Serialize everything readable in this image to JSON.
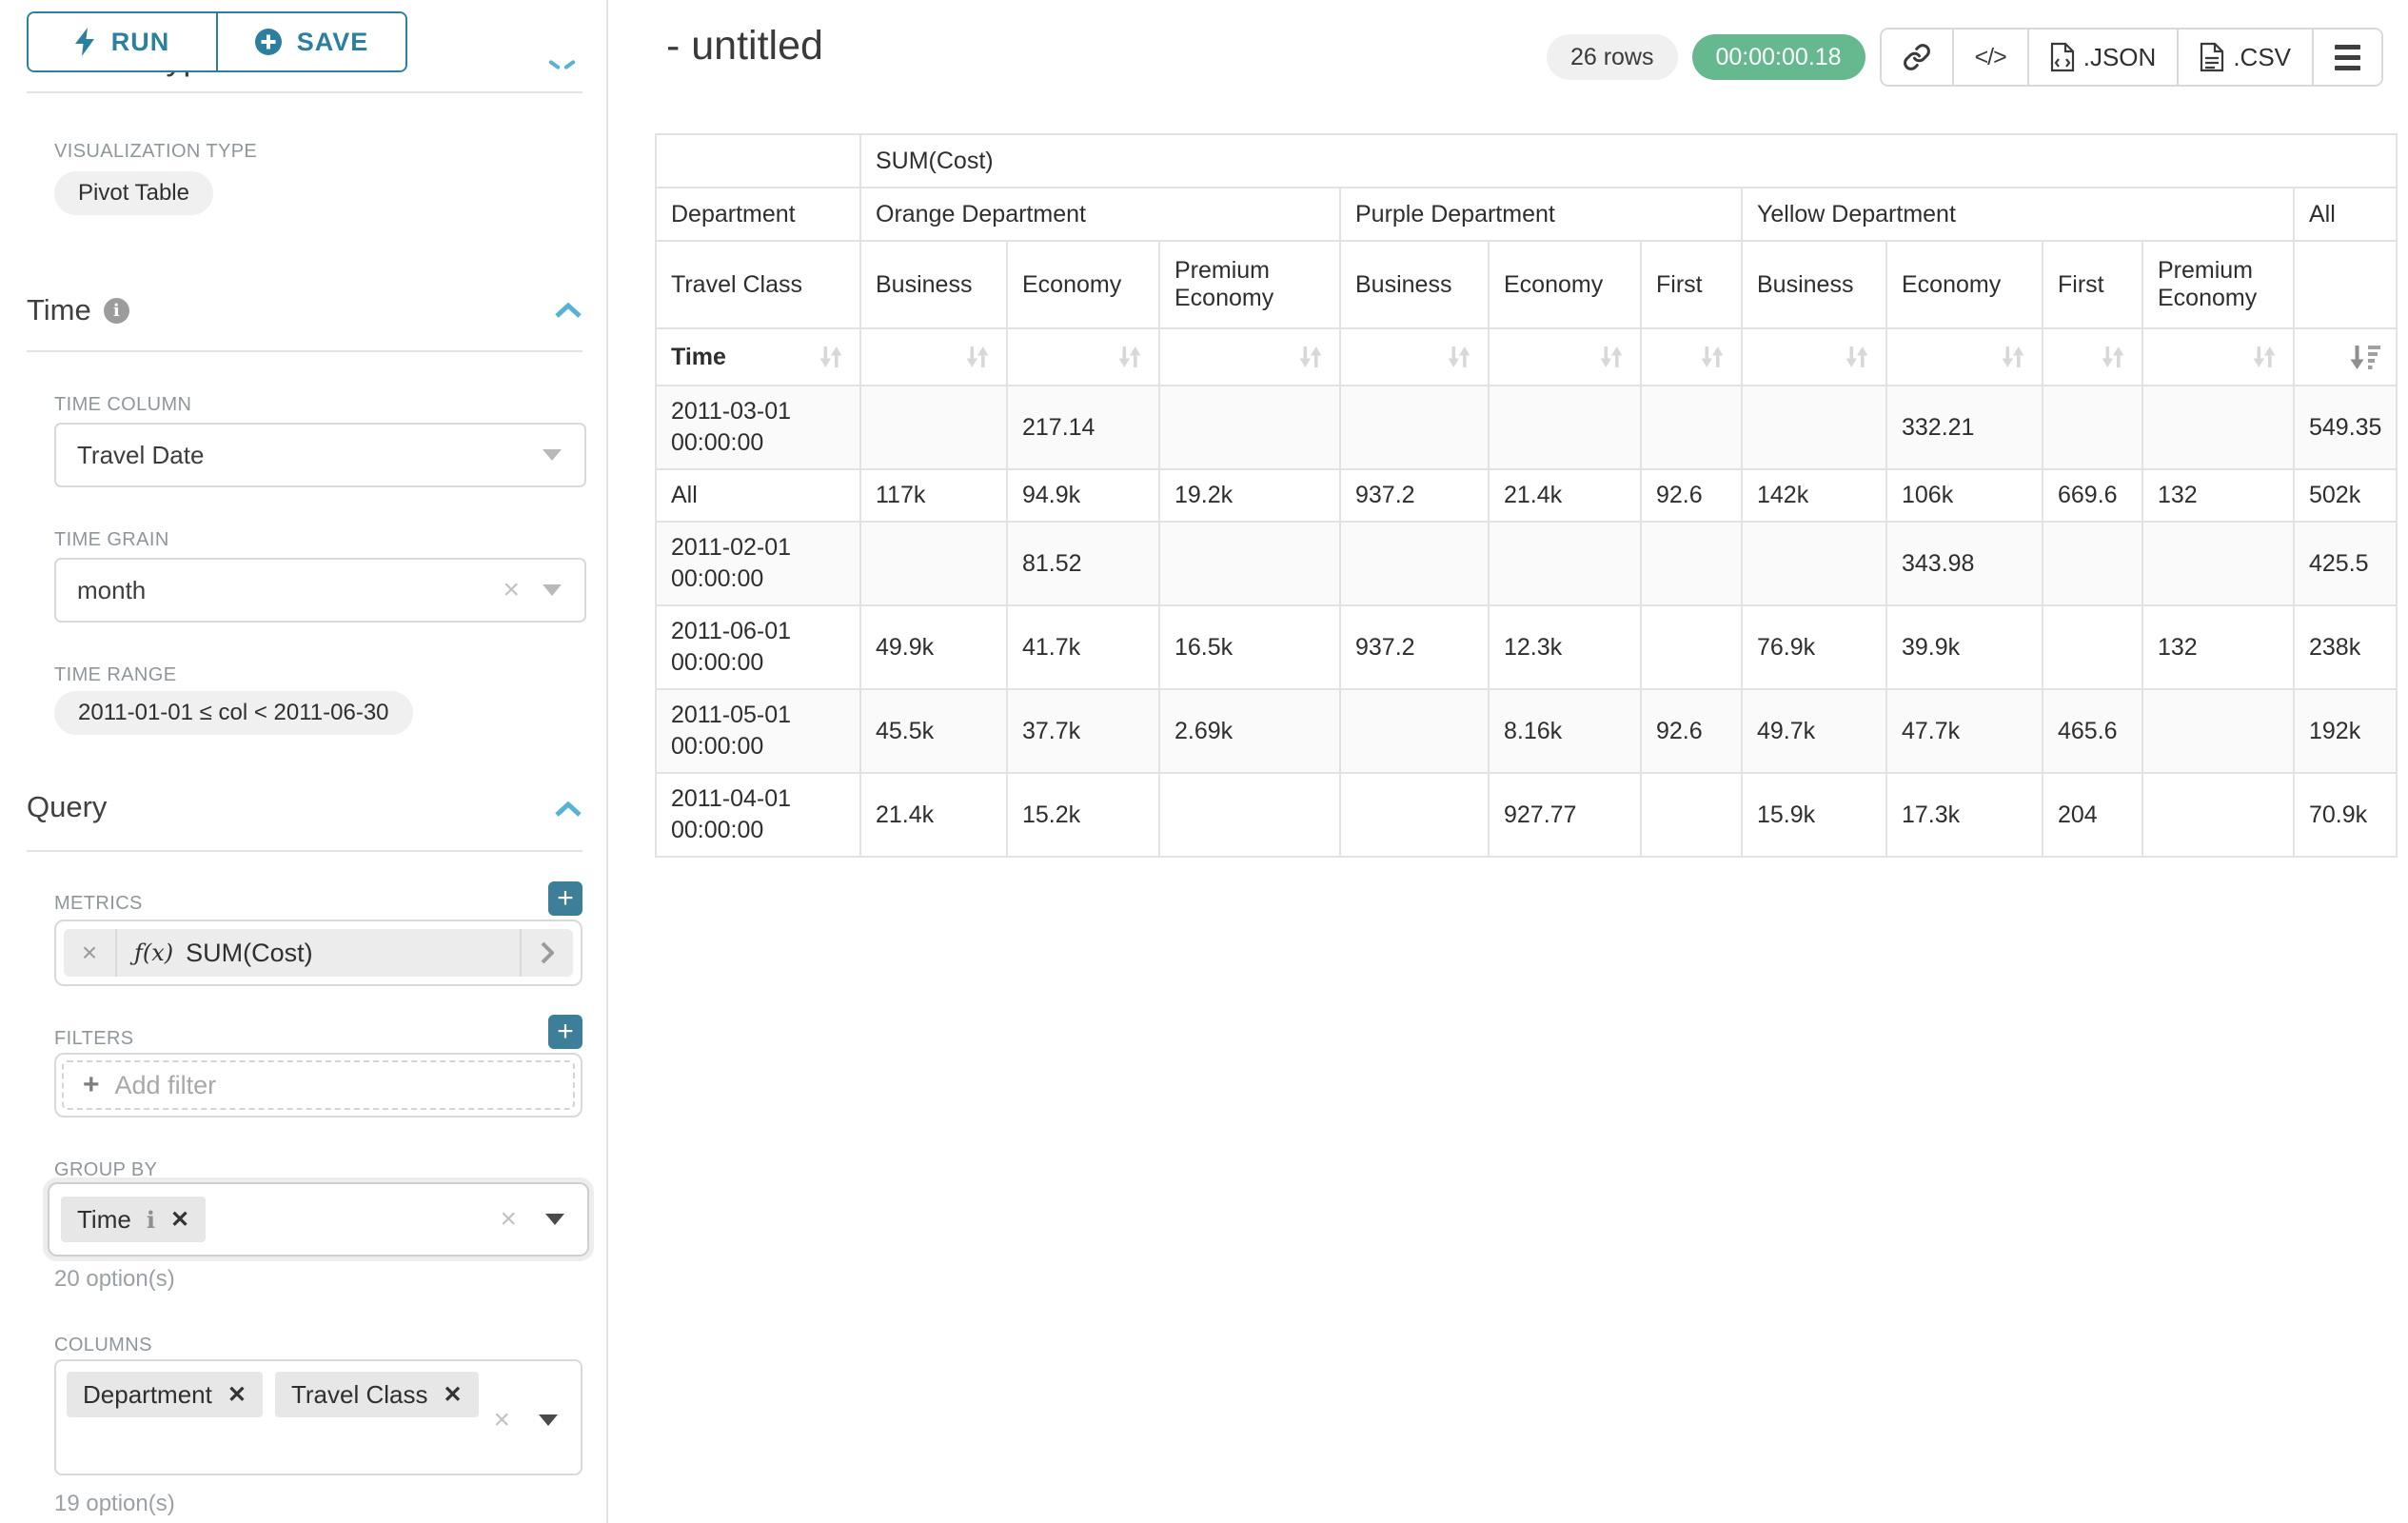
{
  "colors": {
    "accent_teal": "#2c7f9e",
    "button_teal": "#3d7e99",
    "chevron_blue": "#58b2d5",
    "success_green": "#66b98e"
  },
  "sidebar": {
    "run_label": "RUN",
    "save_label": "SAVE",
    "chart_type_header": "Chart Type",
    "viz_type_label": "VISUALIZATION TYPE",
    "viz_type_value": "Pivot Table",
    "time_section_label": "Time",
    "time_column_label": "TIME COLUMN",
    "time_column_value": "Travel Date",
    "time_grain_label": "TIME GRAIN",
    "time_grain_value": "month",
    "time_range_label": "TIME RANGE",
    "time_range_value": "2011-01-01 ≤ col < 2011-06-30",
    "query_section_label": "Query",
    "metrics_label": "METRICS",
    "metric": {
      "fx": "ƒ(x)",
      "name": "SUM(Cost)"
    },
    "filters_label": "FILTERS",
    "add_filter_label": "Add filter",
    "group_by_label": "GROUP BY",
    "group_by_tags": [
      "Time"
    ],
    "group_by_options": "20 option(s)",
    "columns_label": "COLUMNS",
    "columns_tags": [
      "Department",
      "Travel Class"
    ],
    "columns_options": "19 option(s)"
  },
  "header": {
    "title": "- untitled",
    "rows_badge": "26 rows",
    "timer": "00:00:00.18",
    "code_button": "</>",
    "json_button": ".JSON",
    "csv_button": ".CSV"
  },
  "pivot": {
    "metric_header": "SUM(Cost)",
    "dept_row_label": "Department",
    "class_row_label": "Travel Class",
    "time_row_label": "Time",
    "col_groups": [
      {
        "label": "Orange Department",
        "cols": [
          "Business",
          "Economy",
          "Premium Economy"
        ]
      },
      {
        "label": "Purple Department",
        "cols": [
          "Business",
          "Economy",
          "First"
        ]
      },
      {
        "label": "Yellow Department",
        "cols": [
          "Business",
          "Economy",
          "First",
          "Premium Economy"
        ]
      },
      {
        "label": "All",
        "cols": [
          ""
        ]
      }
    ],
    "rows": [
      {
        "label": "2011-03-01 00:00:00",
        "values": [
          "",
          "217.14",
          "",
          "",
          "",
          "",
          "",
          "332.21",
          "",
          "",
          "549.35"
        ]
      },
      {
        "label": "All",
        "values": [
          "117k",
          "94.9k",
          "19.2k",
          "937.2",
          "21.4k",
          "92.6",
          "142k",
          "106k",
          "669.6",
          "132",
          "502k"
        ]
      },
      {
        "label": "2011-02-01 00:00:00",
        "values": [
          "",
          "81.52",
          "",
          "",
          "",
          "",
          "",
          "343.98",
          "",
          "",
          "425.5"
        ]
      },
      {
        "label": "2011-06-01 00:00:00",
        "values": [
          "49.9k",
          "41.7k",
          "16.5k",
          "937.2",
          "12.3k",
          "",
          "76.9k",
          "39.9k",
          "",
          "132",
          "238k"
        ]
      },
      {
        "label": "2011-05-01 00:00:00",
        "values": [
          "45.5k",
          "37.7k",
          "2.69k",
          "",
          "8.16k",
          "92.6",
          "49.7k",
          "47.7k",
          "465.6",
          "",
          "192k"
        ]
      },
      {
        "label": "2011-04-01 00:00:00",
        "values": [
          "21.4k",
          "15.2k",
          "",
          "",
          "927.77",
          "",
          "15.9k",
          "17.3k",
          "204",
          "",
          "70.9k"
        ]
      }
    ]
  }
}
